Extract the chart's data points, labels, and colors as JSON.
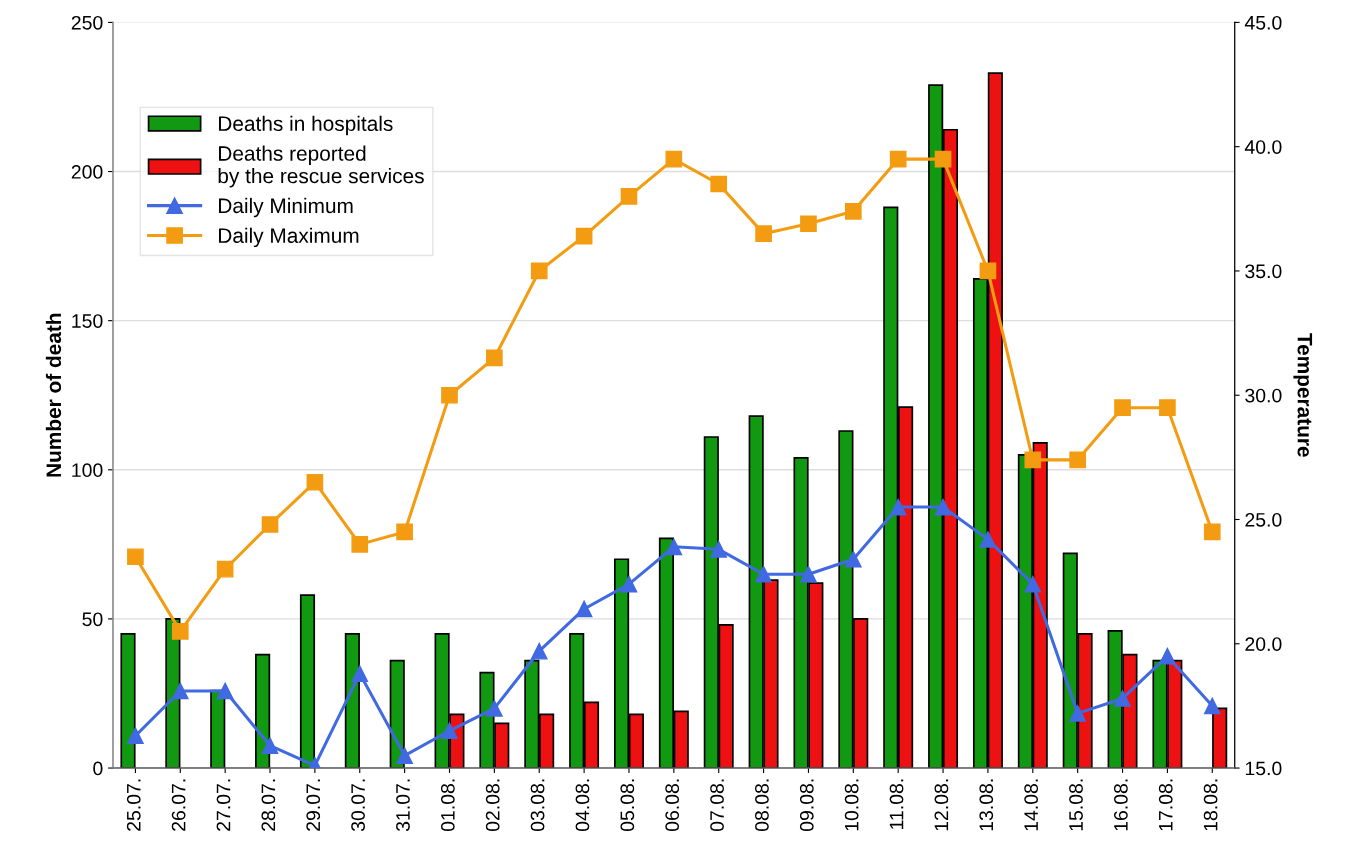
{
  "chart_data": {
    "type": "bar",
    "ylabel": "Number of death",
    "y2label": "Temperature",
    "categories": [
      "25.07.",
      "26.07.",
      "27.07.",
      "28.07.",
      "29.07.",
      "30.07.",
      "31.07.",
      "01.08.",
      "02.08.",
      "03.08.",
      "04.08.",
      "05.08.",
      "06.08.",
      "07.08.",
      "08.08.",
      "09.08.",
      "10.08.",
      "11.08.",
      "12.08.",
      "13.08.",
      "14.08.",
      "15.08.",
      "16.08.",
      "17.08.",
      "18.08."
    ],
    "series": [
      {
        "name": "Deaths in hospitals",
        "color": "#119911",
        "values": [
          45,
          50,
          26,
          38,
          58,
          45,
          36,
          45,
          32,
          36,
          45,
          70,
          77,
          111,
          118,
          104,
          113,
          188,
          229,
          164,
          105,
          72,
          46,
          36,
          null
        ]
      },
      {
        "name": "Deaths reported\nby the rescue services",
        "color": "#ee1111",
        "values": [
          null,
          null,
          null,
          null,
          null,
          null,
          null,
          18,
          15,
          18,
          22,
          18,
          19,
          48,
          63,
          62,
          50,
          121,
          214,
          233,
          109,
          45,
          38,
          36,
          20
        ]
      },
      {
        "name": "Daily Minimum",
        "type": "line",
        "axis": "y2",
        "marker": "triangle",
        "color": "#4169e1",
        "values": [
          16.3,
          18.1,
          18.1,
          15.9,
          15.1,
          18.8,
          15.5,
          16.5,
          17.4,
          19.7,
          21.4,
          22.4,
          23.9,
          23.8,
          22.8,
          22.8,
          23.4,
          25.5,
          25.5,
          24.2,
          22.4,
          17.2,
          17.8,
          19.5,
          17.5
        ]
      },
      {
        "name": "Daily Maximum",
        "type": "line",
        "axis": "y2",
        "marker": "square",
        "color": "#f39c12",
        "values": [
          23.5,
          20.5,
          23,
          24.8,
          26.5,
          24,
          24.5,
          30,
          31.5,
          35,
          36.4,
          38,
          39.5,
          38.5,
          36.5,
          36.9,
          37.4,
          39.5,
          39.5,
          35,
          27.4,
          27.4,
          29.5,
          29.5,
          24.5
        ]
      }
    ],
    "ylim": [
      0,
      250
    ],
    "yticks": [
      0,
      50,
      100,
      150,
      200,
      250
    ],
    "y2lim": [
      15,
      45
    ],
    "y2ticks": [
      {
        "value": 15,
        "label": "15.0"
      },
      {
        "value": 20,
        "label": "20.0"
      },
      {
        "value": 25,
        "label": "25.0"
      },
      {
        "value": 30,
        "label": "30.0"
      },
      {
        "value": 35,
        "label": "35.0"
      },
      {
        "value": 40,
        "label": "40.0"
      },
      {
        "value": 45,
        "label": "45.0"
      }
    ],
    "grid": "y",
    "legend": "top left"
  }
}
